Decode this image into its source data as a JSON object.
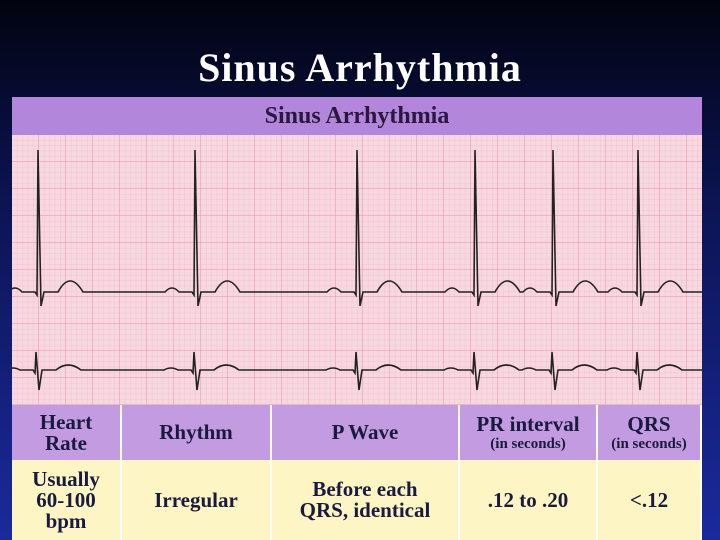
{
  "slide_title": "Sinus Arrhythmia",
  "panel_title": "Sinus Arrhythmia",
  "table": {
    "headers": [
      {
        "lines": [
          "Heart",
          "Rate"
        ]
      },
      {
        "lines": [
          "Rhythm"
        ]
      },
      {
        "lines": [
          "P Wave"
        ]
      },
      {
        "lines": [
          "PR interval"
        ],
        "note": "(in seconds)"
      },
      {
        "lines": [
          "QRS"
        ],
        "note": "(in seconds)"
      }
    ],
    "rows": [
      [
        {
          "lines": [
            "Usually",
            "60-100",
            "bpm"
          ]
        },
        {
          "lines": [
            "Irregular"
          ]
        },
        {
          "lines": [
            "Before each",
            "QRS, identical"
          ]
        },
        {
          "lines": [
            ".12 to .20"
          ]
        },
        {
          "lines": [
            "<.12"
          ]
        }
      ]
    ]
  }
}
